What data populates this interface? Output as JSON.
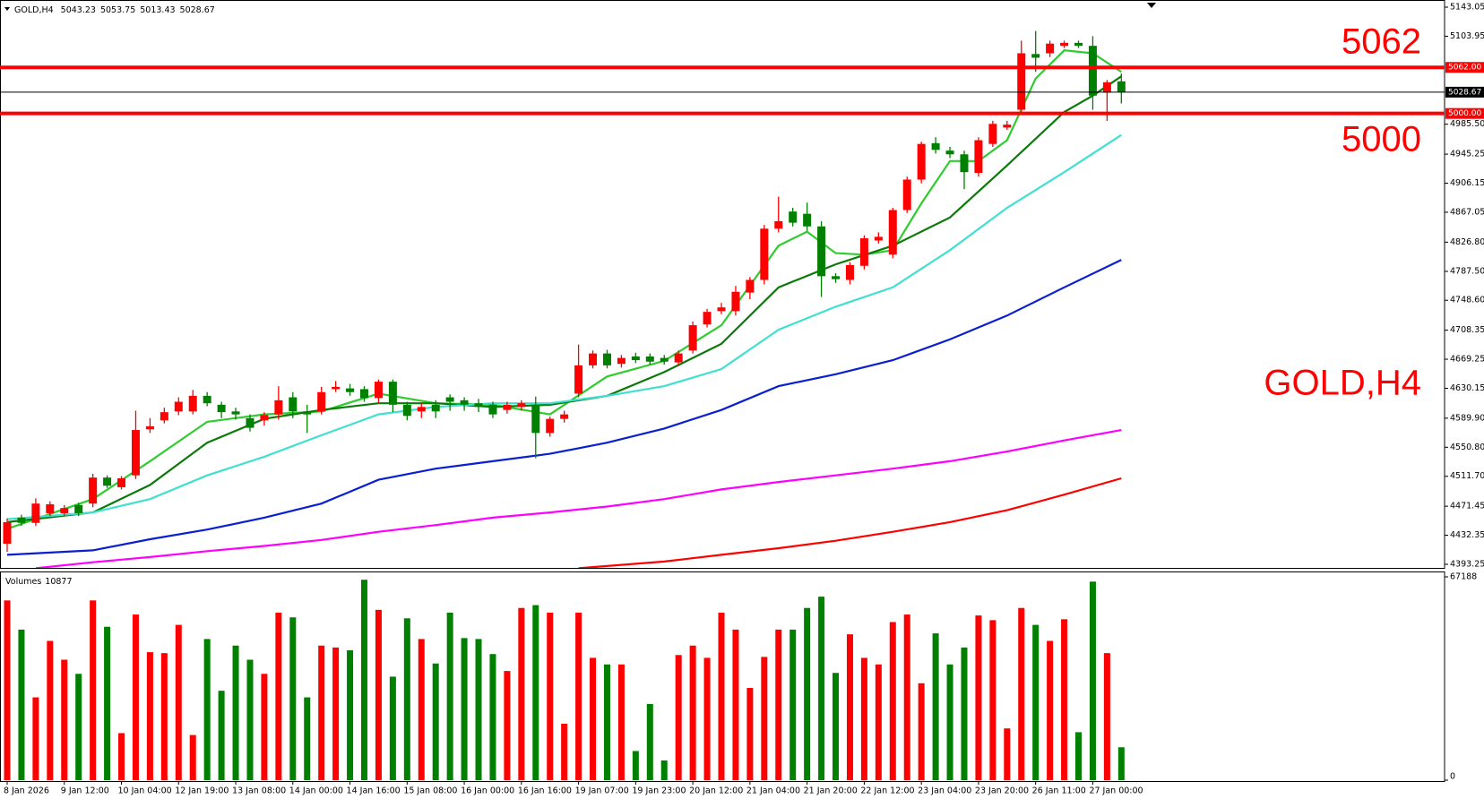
{
  "chart_data": [
    {
      "type": "candlestick",
      "title": "GOLD,H4",
      "categories": [
        "8 Jan 2026",
        null,
        null,
        null,
        "9 Jan 12:00",
        null,
        null,
        null,
        "10 Jan 04:00",
        null,
        null,
        null,
        "12 Jan 19:00",
        null,
        null,
        null,
        "13 Jan 08:00",
        null,
        null,
        null,
        "14 Jan 00:00",
        null,
        null,
        null,
        "14 Jan 16:00",
        null,
        null,
        null,
        "15 Jan 08:00",
        null,
        null,
        null,
        "16 Jan 00:00",
        null,
        null,
        null,
        "16 Jan 16:00",
        null,
        null,
        null,
        "19 Jan 07:00",
        null,
        null,
        null,
        "19 Jan 23:00",
        null,
        null,
        null,
        "20 Jan 12:00",
        null,
        null,
        null,
        "21 Jan 04:00",
        null,
        null,
        null,
        "21 Jan 20:00",
        null,
        null,
        null,
        "22 Jan 12:00",
        null,
        null,
        null,
        "23 Jan 04:00",
        null,
        null,
        null,
        "23 Jan 20:00",
        null,
        null,
        null,
        "26 Jan 11:00",
        null,
        null,
        null,
        "27 Jan 00:00",
        null,
        null
      ],
      "open": [
        4421,
        4456,
        4449,
        4462,
        4462,
        4473,
        4475,
        4510,
        4497,
        4513,
        4575,
        4587,
        4599,
        4599,
        4620,
        4608,
        4599,
        4590,
        4587,
        4595,
        4618,
        4599,
        4599,
        4629,
        4630,
        4629,
        4617,
        4639,
        4608,
        4599,
        4608,
        4618,
        4614,
        4610,
        4608,
        4601,
        4605,
        4608,
        4570,
        4589,
        4623,
        4661,
        4677,
        4663,
        4673,
        4673,
        4671,
        4665,
        4681,
        4716,
        4734,
        4734,
        4759,
        4776,
        4845,
        4868,
        4865,
        4848,
        4781,
        4776,
        4795,
        4829,
        4810,
        4870,
        4911,
        4960,
        4950,
        4945,
        4920,
        4959,
        4981,
        5005,
        5080,
        5081,
        5091,
        5095,
        5091,
        5028,
        5043.23
      ],
      "high": [
        4455,
        4460,
        4482,
        4478,
        4473,
        4476,
        4515,
        4513,
        4512,
        4600,
        4590,
        4604,
        4618,
        4628,
        4625,
        4612,
        4604,
        4595,
        4598,
        4633,
        4625,
        4608,
        4632,
        4640,
        4636,
        4633,
        4642,
        4642,
        4612,
        4610,
        4614,
        4622,
        4618,
        4616,
        4612,
        4612,
        4614,
        4619,
        4592,
        4600,
        4689,
        4681,
        4682,
        4675,
        4678,
        4677,
        4675,
        4681,
        4720,
        4737,
        4745,
        4768,
        4780,
        4850,
        4888,
        4873,
        4880,
        4855,
        4785,
        4800,
        4836,
        4840,
        4873,
        4915,
        4962,
        4968,
        4955,
        4950,
        4968,
        4990,
        4990,
        5098,
        5111,
        5098,
        5098,
        5098,
        5104,
        5045,
        5053.75
      ],
      "low": [
        4410,
        4445,
        4445,
        4458,
        4458,
        4458,
        4470,
        4496,
        4494,
        4508,
        4570,
        4583,
        4594,
        4595,
        4606,
        4590,
        4588,
        4572,
        4580,
        4588,
        4590,
        4570,
        4595,
        4625,
        4620,
        4612,
        4610,
        4598,
        4587,
        4590,
        4590,
        4600,
        4600,
        4598,
        4590,
        4596,
        4600,
        4536,
        4565,
        4584,
        4618,
        4657,
        4657,
        4658,
        4664,
        4662,
        4662,
        4660,
        4677,
        4712,
        4730,
        4728,
        4750,
        4770,
        4840,
        4848,
        4842,
        4753,
        4772,
        4770,
        4790,
        4825,
        4805,
        4866,
        4906,
        4946,
        4940,
        4898,
        4915,
        4955,
        4978,
        5000,
        5056,
        5076,
        5088,
        5088,
        5005,
        4990,
        5013.43
      ],
      "close": [
        4450,
        4449,
        4475,
        4474,
        4469,
        4462,
        4510,
        4499,
        4509,
        4574,
        4579,
        4598,
        4612,
        4620,
        4610,
        4598,
        4595,
        4577,
        4594,
        4614,
        4599,
        4595,
        4625,
        4632,
        4625,
        4617,
        4639,
        4608,
        4593,
        4605,
        4599,
        4612,
        4608,
        4605,
        4595,
        4608,
        4610,
        4570,
        4589,
        4595,
        4661,
        4677,
        4661,
        4671,
        4668,
        4666,
        4666,
        4677,
        4715,
        4733,
        4739,
        4760,
        4776,
        4845,
        4855,
        4853,
        4848,
        4781,
        4777,
        4796,
        4832,
        4834,
        4870,
        4911,
        4959,
        4951,
        4945,
        4921,
        4964,
        4986,
        4985,
        5081,
        5075,
        5094,
        5095,
        5091,
        5024,
        5042,
        5028.67
      ],
      "up_color": "#ff0000",
      "down_color": "#008000",
      "overlays": [
        {
          "color": "#2ecc2e",
          "x": [
            0,
            6,
            10,
            14,
            18,
            22,
            26,
            30,
            34,
            38,
            42,
            46,
            50,
            54,
            56,
            58,
            60,
            62,
            64,
            66,
            68,
            70,
            72,
            74,
            76,
            78
          ],
          "values": [
            4441,
            4481,
            4532,
            4585,
            4595,
            4599,
            4623,
            4610,
            4608,
            4595,
            4646,
            4667,
            4715,
            4822,
            4841,
            4812,
            4810,
            4816,
            4879,
            4936,
            4936,
            4964,
            5047,
            5085,
            5081,
            5056
          ]
        },
        {
          "color": "#0b7a0b",
          "x": [
            0,
            6,
            10,
            14,
            18,
            22,
            26,
            30,
            34,
            38,
            42,
            46,
            50,
            54,
            58,
            62,
            66,
            70,
            74,
            76,
            78
          ],
          "values": [
            4450,
            4463,
            4500,
            4557,
            4589,
            4601,
            4610,
            4610,
            4605,
            4608,
            4620,
            4652,
            4690,
            4766,
            4797,
            4822,
            4860,
            4930,
            5002,
            5024,
            5050
          ]
        },
        {
          "color": "#40e0d0",
          "x": [
            0,
            6,
            10,
            14,
            18,
            22,
            26,
            30,
            34,
            38,
            42,
            46,
            50,
            54,
            58,
            62,
            66,
            70,
            74,
            78
          ],
          "values": [
            4454,
            4463,
            4481,
            4513,
            4538,
            4567,
            4595,
            4605,
            4610,
            4610,
            4620,
            4633,
            4656,
            4709,
            4740,
            4766,
            4816,
            4873,
            4921,
            4971
          ]
        },
        {
          "color": "#0a1fd0",
          "x": [
            0,
            6,
            10,
            14,
            18,
            22,
            26,
            30,
            34,
            38,
            42,
            46,
            50,
            54,
            58,
            62,
            66,
            70,
            74,
            78
          ],
          "values": [
            4406,
            4412,
            4427,
            4440,
            4456,
            4475,
            4507,
            4522,
            4532,
            4542,
            4557,
            4576,
            4601,
            4633,
            4649,
            4668,
            4696,
            4728,
            4766,
            4803
          ]
        },
        {
          "color": "#ff00ff",
          "x": [
            2,
            6,
            10,
            14,
            18,
            22,
            26,
            30,
            34,
            38,
            42,
            46,
            50,
            54,
            58,
            62,
            66,
            70,
            74,
            78
          ],
          "values": [
            4388,
            4396,
            4403,
            4411,
            4418,
            4426,
            4437,
            4446,
            4456,
            4463,
            4471,
            4481,
            4494,
            4504,
            4513,
            4522,
            4532,
            4545,
            4560,
            4574
          ]
        },
        {
          "color": "#ff0000",
          "x": [
            40,
            42,
            46,
            50,
            54,
            58,
            62,
            66,
            70,
            74,
            78
          ],
          "values": [
            4388,
            4391,
            4397,
            4406,
            4415,
            4425,
            4437,
            4450,
            4466,
            4487,
            4509
          ]
        }
      ],
      "levels": [
        {
          "value": 5062,
          "label": "5062.00",
          "annotation": "5062",
          "color": "#ff0000"
        },
        {
          "value": 5000,
          "label": "5000.00",
          "annotation": "5000",
          "color": "#ff0000"
        }
      ],
      "ylim": [
        4393.25,
        5143.05
      ],
      "yticks": [
        5143.05,
        5103.95,
        {
          "value": 4985.5,
          "label": "4985.50"
        },
        {
          "value": 4945.25,
          "label": "4945.25"
        },
        4906.15,
        4867.05,
        {
          "value": 4826.8,
          "label": "4826.80"
        },
        {
          "value": 4787.5,
          "label": "4787.50"
        },
        {
          "value": 4748.6,
          "label": "4748.60"
        },
        4708.35,
        4669.25,
        4630.15,
        {
          "value": 4589.9,
          "label": "4589.90"
        },
        {
          "value": 4550.8,
          "label": "4550.80"
        },
        {
          "value": 4511.7,
          "label": "4511.70"
        },
        4471.45,
        4432.35,
        4393.25
      ],
      "grid": false
    },
    {
      "type": "bar",
      "title": "Volumes",
      "values": [
        59400,
        49760,
        27370,
        46030,
        39810,
        35140,
        59400,
        50690,
        15550,
        54740,
        42300,
        41990,
        51320,
        14930,
        46650,
        29550,
        44470,
        39810,
        35140,
        55360,
        53800,
        27370,
        44470,
        43850,
        42920,
        66240,
        56290,
        34210,
        53490,
        46650,
        38560,
        55360,
        46960,
        46650,
        41670,
        36080,
        56910,
        57850,
        55360,
        18660,
        55360,
        40430,
        38250,
        38250,
        9640,
        25190,
        6530,
        41360,
        44470,
        40430,
        55360,
        49760,
        30480,
        40740,
        49760,
        49760,
        56910,
        60650,
        35450,
        48210,
        40430,
        38250,
        52250,
        54740,
        32030,
        48520,
        38250,
        43850,
        54430,
        52870,
        17110,
        56910,
        51320,
        46030,
        53180,
        15860,
        65620,
        41990,
        10877
      ],
      "ylim": [
        0,
        67188
      ],
      "yticks": [
        0,
        67188
      ]
    }
  ]
}
